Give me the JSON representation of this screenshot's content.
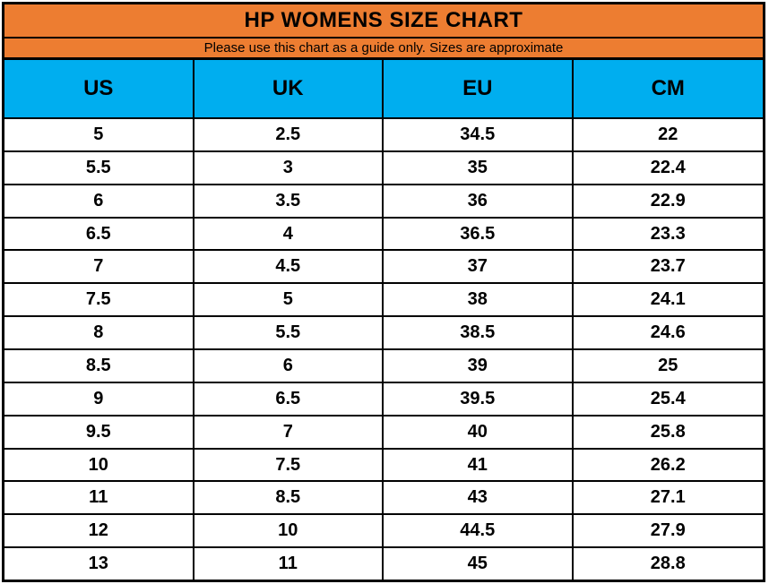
{
  "colors": {
    "title_band_orange": "#ED7D31",
    "column_header_blue": "#00AEEF",
    "border_black": "#000000",
    "cell_background_white": "#FFFFFF",
    "text_black": "#000000"
  },
  "chart_data": {
    "type": "table",
    "title": "HP WOMENS SIZE CHART",
    "subtitle": "Please use this chart as a guide only. Sizes are approximate",
    "columns": [
      "US",
      "UK",
      "EU",
      "CM"
    ],
    "rows": [
      [
        "5",
        "2.5",
        "34.5",
        "22"
      ],
      [
        "5.5",
        "3",
        "35",
        "22.4"
      ],
      [
        "6",
        "3.5",
        "36",
        "22.9"
      ],
      [
        "6.5",
        "4",
        "36.5",
        "23.3"
      ],
      [
        "7",
        "4.5",
        "37",
        "23.7"
      ],
      [
        "7.5",
        "5",
        "38",
        "24.1"
      ],
      [
        "8",
        "5.5",
        "38.5",
        "24.6"
      ],
      [
        "8.5",
        "6",
        "39",
        "25"
      ],
      [
        "9",
        "6.5",
        "39.5",
        "25.4"
      ],
      [
        "9.5",
        "7",
        "40",
        "25.8"
      ],
      [
        "10",
        "7.5",
        "41",
        "26.2"
      ],
      [
        "11",
        "8.5",
        "43",
        "27.1"
      ],
      [
        "12",
        "10",
        "44.5",
        "27.9"
      ],
      [
        "13",
        "11",
        "45",
        "28.8"
      ]
    ],
    "layout": {
      "grid": "on",
      "legend": "none",
      "column_count": 4,
      "row_count": 14
    }
  }
}
